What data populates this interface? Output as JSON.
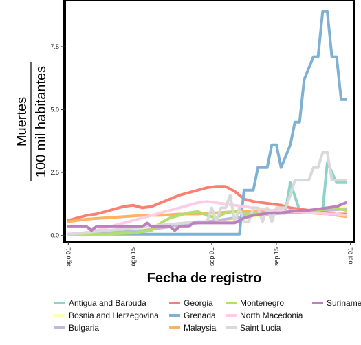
{
  "chart_data": {
    "type": "line",
    "xlabel": "Fecha de registro",
    "ylabel_numerator": "Muertes",
    "ylabel_denominator": "100 mil habitantes",
    "x_ticks": [
      "ago 01",
      "ago 15",
      "sep 01",
      "sep 15",
      "oct 01"
    ],
    "x_tick_days": [
      0,
      14,
      31,
      45,
      61
    ],
    "y_ticks": [
      "0.0",
      "2.5",
      "5.0",
      "7.5"
    ],
    "y_tick_values": [
      0,
      2.5,
      5,
      7.5
    ],
    "xlim_days": [
      -0.5,
      61.5
    ],
    "ylim": [
      -0.2,
      9.3
    ],
    "grid": false,
    "legend_position": "bottom",
    "series": [
      {
        "name": "Antigua and Barbuda",
        "color": "#8dd3c7",
        "days": [
          41,
          44,
          47,
          48,
          50,
          53,
          55,
          56,
          58,
          60
        ],
        "values": [
          0.9,
          0.9,
          1.0,
          2.1,
          1.0,
          1.0,
          1.0,
          2.9,
          2.1,
          2.1
        ]
      },
      {
        "name": "Bosnia and Herzegovina",
        "color": "#ffffb3",
        "days": [
          0,
          5,
          10,
          14,
          18,
          22,
          26,
          30,
          34,
          38,
          42,
          46,
          50,
          54,
          58,
          60
        ],
        "values": [
          0.05,
          0.1,
          0.15,
          0.2,
          0.25,
          0.35,
          0.45,
          0.55,
          0.6,
          0.7,
          0.8,
          0.9,
          1.0,
          1.0,
          1.1,
          1.1
        ]
      },
      {
        "name": "Bulgaria",
        "color": "#bebada",
        "days": [
          0,
          4,
          8,
          12,
          16,
          20,
          24,
          28,
          32,
          36,
          40,
          44,
          48,
          52,
          56,
          60
        ],
        "values": [
          0.05,
          0.08,
          0.12,
          0.15,
          0.2,
          0.3,
          0.4,
          0.5,
          0.6,
          0.7,
          0.8,
          0.85,
          0.9,
          0.95,
          1.0,
          1.05
        ]
      },
      {
        "name": "Georgia",
        "color": "#fb8072",
        "days": [
          0,
          2,
          4,
          6,
          8,
          10,
          12,
          14,
          16,
          18,
          20,
          22,
          24,
          26,
          28,
          30,
          32,
          34,
          36,
          38,
          40,
          42,
          44,
          46,
          48,
          50,
          52,
          54,
          56,
          58,
          60
        ],
        "values": [
          0.6,
          0.7,
          0.8,
          0.85,
          0.95,
          1.05,
          1.15,
          1.2,
          1.1,
          1.15,
          1.3,
          1.45,
          1.6,
          1.7,
          1.8,
          1.9,
          1.95,
          1.95,
          1.75,
          1.45,
          1.35,
          1.3,
          1.25,
          1.2,
          1.1,
          1.05,
          1.0,
          0.95,
          0.9,
          0.85,
          0.85
        ]
      },
      {
        "name": "Grenada",
        "color": "#80b1d3",
        "days": [
          0,
          37,
          38,
          40,
          41,
          43,
          44,
          45,
          46,
          48,
          49,
          50,
          51,
          53,
          54,
          55,
          56,
          57,
          58,
          59,
          60
        ],
        "values": [
          0.05,
          0.05,
          1.8,
          1.8,
          2.7,
          2.7,
          3.6,
          3.6,
          2.7,
          3.6,
          4.5,
          4.5,
          6.2,
          7.1,
          7.1,
          8.9,
          8.9,
          7.1,
          7.1,
          5.4,
          5.4
        ]
      },
      {
        "name": "Malaysia",
        "color": "#fdb462",
        "days": [
          0,
          4,
          8,
          12,
          16,
          20,
          24,
          28,
          32,
          36,
          40,
          44,
          48,
          52,
          56,
          60
        ],
        "values": [
          0.55,
          0.65,
          0.7,
          0.75,
          0.8,
          0.8,
          0.85,
          0.85,
          0.9,
          0.95,
          0.95,
          0.95,
          0.9,
          0.9,
          0.85,
          0.75
        ]
      },
      {
        "name": "Montenegro",
        "color": "#b3de69",
        "days": [
          0,
          8,
          14,
          18,
          20,
          22,
          24,
          26,
          28,
          30,
          32,
          34,
          36,
          38,
          40,
          42,
          44,
          46,
          48,
          50,
          52,
          54,
          56,
          58,
          60
        ],
        "values": [
          0.05,
          0.05,
          0.1,
          0.2,
          0.5,
          0.7,
          0.8,
          0.9,
          0.95,
          0.8,
          0.7,
          0.9,
          0.95,
          0.85,
          0.9,
          0.85,
          0.95,
          0.9,
          1.0,
          1.0,
          0.95,
          1.0,
          1.05,
          1.1,
          1.0
        ]
      },
      {
        "name": "North Macedonia",
        "color": "#fccde5",
        "days": [
          0,
          4,
          8,
          12,
          16,
          18,
          20,
          22,
          24,
          26,
          28,
          30,
          32,
          34,
          36,
          38,
          40,
          42,
          44,
          46,
          48,
          50,
          52,
          54,
          56,
          58,
          60
        ],
        "values": [
          0.05,
          0.1,
          0.3,
          0.5,
          0.7,
          0.8,
          0.9,
          1.0,
          1.1,
          1.2,
          1.3,
          1.35,
          1.3,
          1.25,
          1.2,
          1.15,
          1.1,
          1.05,
          1.0,
          1.0,
          0.95,
          0.95,
          0.9,
          0.9,
          0.85,
          0.85,
          0.8
        ]
      },
      {
        "name": "Saint Lucia",
        "color": "#d9d9d9",
        "days": [
          0,
          28,
          30,
          31,
          32,
          33,
          34,
          35,
          36,
          37,
          38,
          39,
          40,
          41,
          42,
          43,
          44,
          45,
          46,
          47,
          48,
          49,
          50,
          51,
          52,
          53,
          54,
          55,
          56,
          57,
          58,
          59,
          60
        ],
        "values": [
          0.05,
          0.55,
          0.55,
          1.1,
          0.55,
          1.1,
          1.1,
          1.6,
          0.55,
          1.1,
          0.55,
          0.55,
          1.1,
          1.1,
          0.55,
          1.1,
          0.55,
          1.1,
          1.1,
          1.1,
          1.6,
          2.2,
          2.2,
          2.2,
          2.2,
          2.7,
          2.7,
          3.3,
          3.3,
          2.2,
          2.2,
          2.2,
          2.2
        ]
      },
      {
        "name": "Suriname",
        "color": "#bc80bd",
        "days": [
          0,
          4,
          5,
          6,
          12,
          14,
          16,
          17,
          18,
          20,
          22,
          23,
          24,
          26,
          27,
          30,
          32,
          34,
          36,
          38,
          40,
          42,
          44,
          46,
          48,
          50,
          52,
          54,
          56,
          58,
          60
        ],
        "values": [
          0.35,
          0.35,
          0.2,
          0.35,
          0.35,
          0.35,
          0.35,
          0.5,
          0.35,
          0.35,
          0.35,
          0.2,
          0.35,
          0.35,
          0.5,
          0.5,
          0.5,
          0.5,
          0.5,
          0.7,
          0.8,
          0.85,
          0.9,
          0.9,
          0.95,
          1.0,
          1.0,
          1.05,
          1.1,
          1.15,
          1.3
        ]
      }
    ]
  }
}
